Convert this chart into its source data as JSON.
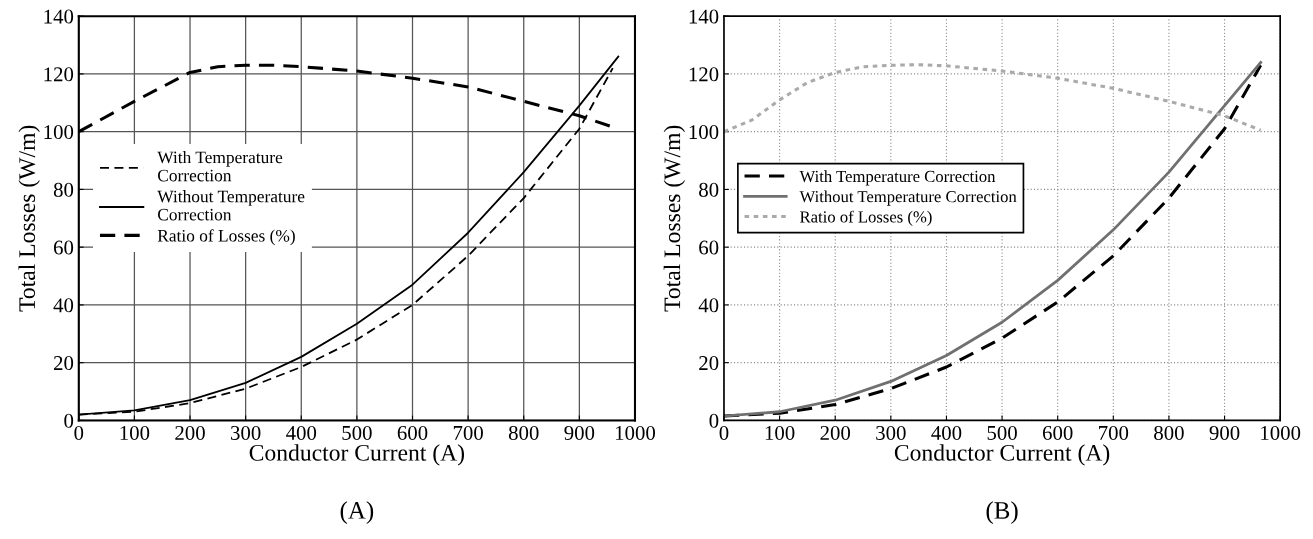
{
  "chart_data": [
    {
      "type": "line",
      "xlabel": "Conductor Current (A)",
      "ylabel": "Total Losses (W/m)",
      "annotations": [
        "(A)"
      ],
      "xlim": [
        0,
        1000
      ],
      "ylim": [
        0,
        140
      ],
      "xticks": [
        0,
        100,
        200,
        300,
        400,
        500,
        600,
        700,
        800,
        900,
        1000
      ],
      "yticks": [
        0,
        20,
        40,
        60,
        80,
        100,
        120,
        140
      ],
      "grid": true,
      "legend": "center left",
      "marker": "none",
      "series": [
        {
          "name": "With Temperature\nCorrection",
          "color": "#000000",
          "line_style": "dashed",
          "x": [
            0,
            100,
            200,
            300,
            400,
            500,
            600,
            700,
            800,
            900,
            960
          ],
          "values": [
            2,
            3,
            6,
            11,
            18.5,
            28,
            40,
            57,
            77,
            101,
            122
          ]
        },
        {
          "name": "Without Temperature\nCorrection",
          "color": "#000000",
          "line_style": "solid",
          "x": [
            0,
            100,
            200,
            300,
            400,
            500,
            600,
            700,
            800,
            900,
            970
          ],
          "values": [
            2,
            3.5,
            7,
            13,
            22,
            33.5,
            47,
            65,
            86,
            109,
            126
          ]
        },
        {
          "name": "Ratio of Losses (%)",
          "color": "#000000",
          "line_style": "dashed",
          "x": [
            0,
            100,
            200,
            250,
            300,
            350,
            400,
            500,
            600,
            700,
            800,
            900,
            970
          ],
          "values": [
            100,
            110.5,
            120.5,
            122.5,
            123,
            123,
            122.5,
            121,
            118.5,
            115.5,
            110.5,
            105.5,
            101
          ]
        }
      ]
    },
    {
      "type": "line",
      "xlabel": "Conductor Current (A)",
      "ylabel": "Total Losses (W/m)",
      "annotations": [
        "(B)"
      ],
      "xlim": [
        0,
        1000
      ],
      "ylim": [
        0,
        140
      ],
      "xticks": [
        0,
        100,
        200,
        300,
        400,
        500,
        600,
        700,
        800,
        900,
        1000
      ],
      "yticks": [
        0,
        20,
        40,
        60,
        80,
        100,
        120,
        140
      ],
      "grid": true,
      "legend": "center left",
      "marker": "none",
      "series": [
        {
          "name": "With Temperature Correction",
          "color": "#000000",
          "line_style": "dashed",
          "x": [
            0,
            100,
            200,
            300,
            400,
            500,
            600,
            700,
            800,
            900,
            965
          ],
          "values": [
            1.5,
            2.5,
            5.5,
            11,
            18.5,
            28.5,
            41,
            57,
            77,
            101,
            123
          ]
        },
        {
          "name": "Without Temperature Correction",
          "color": "#707070",
          "line_style": "solid",
          "x": [
            0,
            100,
            200,
            300,
            400,
            500,
            600,
            700,
            800,
            900,
            965
          ],
          "values": [
            1.5,
            3,
            7,
            13.5,
            22.5,
            34,
            48.5,
            66,
            86,
            109,
            124
          ]
        },
        {
          "name": "Ratio of Losses (%)",
          "color": "#aaaaaa",
          "line_style": "dotted",
          "x": [
            0,
            50,
            100,
            150,
            200,
            250,
            300,
            350,
            400,
            500,
            600,
            700,
            800,
            900,
            965
          ],
          "values": [
            100,
            104,
            111,
            117,
            120.5,
            122.5,
            123,
            123.2,
            122.8,
            121,
            118.5,
            115,
            110.5,
            105.5,
            100.5
          ]
        }
      ]
    }
  ]
}
